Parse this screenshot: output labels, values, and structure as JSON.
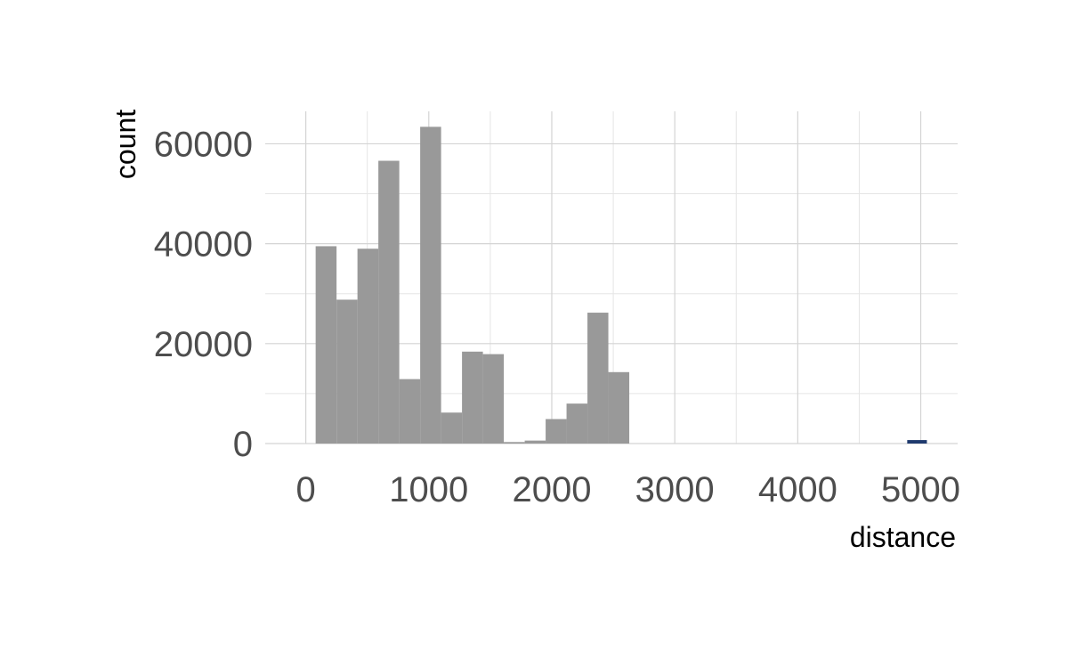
{
  "chart_data": {
    "type": "bar",
    "subtype": "histogram",
    "xlabel": "distance",
    "ylabel": "count",
    "xlim": [
      -330,
      5300
    ],
    "ylim": [
      0,
      66500
    ],
    "x_ticks": [
      0,
      1000,
      2000,
      3000,
      4000,
      5000
    ],
    "y_ticks": [
      0,
      20000,
      40000,
      60000
    ],
    "x_tick_labels": [
      "0",
      "1000",
      "2000",
      "3000",
      "4000",
      "5000"
    ],
    "y_tick_labels": [
      "0",
      "20000",
      "40000",
      "60000"
    ],
    "grid": true,
    "legend": "none",
    "bin_width": 170,
    "series": [
      {
        "color": "#999999",
        "bins": [
          {
            "x_start": 80,
            "x_end": 250,
            "count": 39500
          },
          {
            "x_start": 250,
            "x_end": 420,
            "count": 28800
          },
          {
            "x_start": 420,
            "x_end": 590,
            "count": 39000
          },
          {
            "x_start": 590,
            "x_end": 760,
            "count": 56600
          },
          {
            "x_start": 760,
            "x_end": 930,
            "count": 12900
          },
          {
            "x_start": 930,
            "x_end": 1100,
            "count": 63400
          },
          {
            "x_start": 1100,
            "x_end": 1270,
            "count": 6200
          },
          {
            "x_start": 1270,
            "x_end": 1440,
            "count": 18400
          },
          {
            "x_start": 1440,
            "x_end": 1610,
            "count": 17900
          },
          {
            "x_start": 1610,
            "x_end": 1780,
            "count": 300
          },
          {
            "x_start": 1780,
            "x_end": 1950,
            "count": 600
          },
          {
            "x_start": 1950,
            "x_end": 2120,
            "count": 4900
          },
          {
            "x_start": 2120,
            "x_end": 2290,
            "count": 8000
          },
          {
            "x_start": 2290,
            "x_end": 2460,
            "count": 26200
          },
          {
            "x_start": 2460,
            "x_end": 2630,
            "count": 14300
          }
        ]
      },
      {
        "color": "#1f3a6e",
        "bins": [
          {
            "x_start": 4890,
            "x_end": 5050,
            "count": 700
          }
        ]
      }
    ]
  }
}
